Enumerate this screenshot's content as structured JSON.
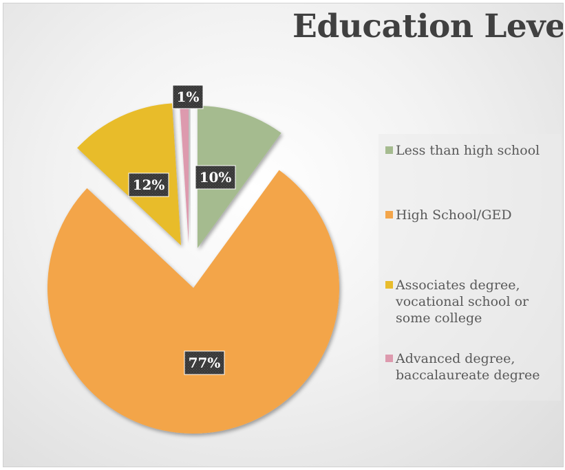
{
  "chart_data": {
    "type": "pie",
    "title": "Education Level",
    "exploded": true,
    "categories": [
      "Less than high school",
      "High School/GED",
      "Associates degree,\nvocational school or\nsome college",
      "Advanced degree,\nbaccalaureate degree"
    ],
    "values": [
      10,
      77,
      12,
      1
    ],
    "data_labels": [
      "10%",
      "77%",
      "12%",
      "1%"
    ],
    "colors": [
      "#a5bb8f",
      "#f3a54a",
      "#e8bc2c",
      "#dd9aae"
    ],
    "legend_position": "right"
  }
}
